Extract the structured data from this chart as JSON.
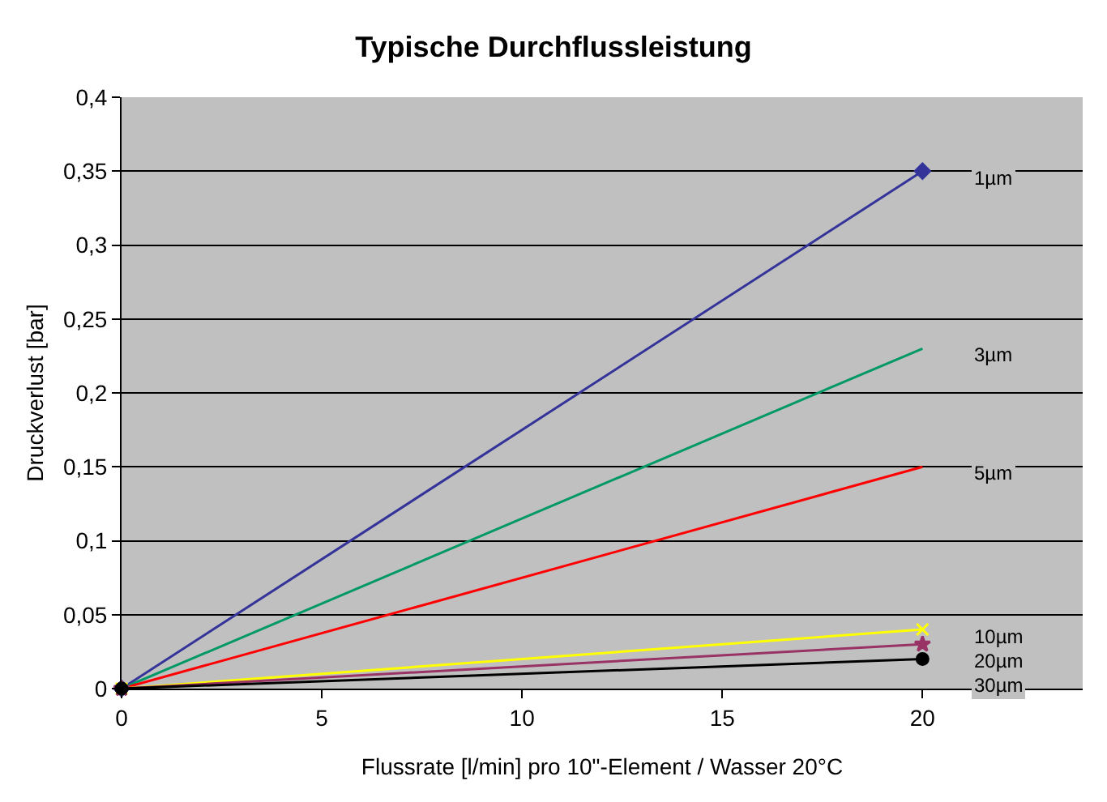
{
  "chart_data": {
    "type": "line",
    "title": "Typische Durchflussleistung",
    "xlabel": "Flussrate [l/min] pro 10\"-Element / Wasser 20°C",
    "ylabel": "Druckverlust [bar]",
    "xlim": [
      0,
      24
    ],
    "xticks": [
      0,
      5,
      10,
      15,
      20
    ],
    "ylim": [
      0,
      0.4
    ],
    "yticks": [
      0,
      {
        "value": 0.05,
        "label": "0,05"
      },
      {
        "value": 0.1,
        "label": "0,1"
      },
      {
        "value": 0.15,
        "label": "0,15"
      },
      {
        "value": 0.2,
        "label": "0,2"
      },
      {
        "value": 0.25,
        "label": "0,25"
      },
      {
        "value": 0.3,
        "label": "0,3"
      },
      {
        "value": 0.35,
        "label": "0,35"
      },
      {
        "value": 0.4,
        "label": "0,4"
      }
    ],
    "grid": "y",
    "legend": false,
    "line_style": "solid",
    "x": [
      0,
      20
    ],
    "series": [
      {
        "name": "1µm",
        "color": "#333399",
        "values": [
          0,
          0.35
        ],
        "marker": "diamond"
      },
      {
        "name": "3µm",
        "color": "#009966",
        "values": [
          0,
          0.23
        ],
        "marker": "none"
      },
      {
        "name": "5µm",
        "color": "#ff0000",
        "values": [
          0,
          0.15
        ],
        "marker": "none"
      },
      {
        "name": "10µm",
        "color": "#ffff00",
        "values": [
          0,
          0.04
        ],
        "marker": "cross"
      },
      {
        "name": "20µm",
        "color": "#993366",
        "values": [
          0,
          0.03
        ],
        "marker": "star"
      },
      {
        "name": "30µm",
        "color": "#000000",
        "values": [
          0,
          0.02
        ],
        "marker": "circle"
      }
    ]
  }
}
